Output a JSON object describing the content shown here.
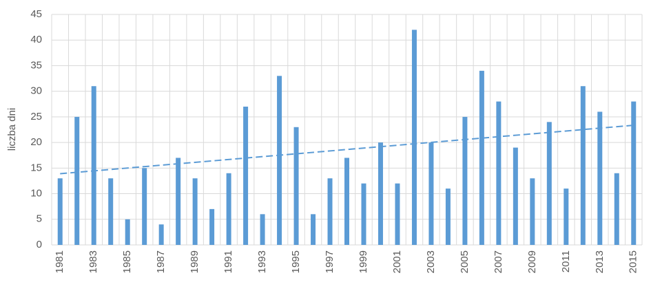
{
  "chart_data": {
    "type": "bar",
    "y_label": "liczba dni",
    "categories": [
      "1981",
      null,
      "1983",
      null,
      "1985",
      null,
      "1987",
      null,
      "1989",
      null,
      "1991",
      null,
      "1993",
      null,
      "1995",
      null,
      "1997",
      null,
      "1999",
      null,
      "2001",
      null,
      "2003",
      null,
      "2005",
      null,
      "2007",
      null,
      "2009",
      null,
      "2011",
      null,
      "2013",
      null,
      "2015"
    ],
    "values": [
      13,
      25,
      31,
      13,
      5,
      15,
      4,
      17,
      13,
      7,
      14,
      27,
      6,
      33,
      23,
      6,
      13,
      17,
      12,
      20,
      12,
      42,
      20,
      11,
      25,
      34,
      28,
      19,
      13,
      24,
      11,
      31,
      26,
      14,
      28
    ],
    "color": "#5b9bd5",
    "ylim": [
      0,
      45
    ],
    "yticks": [
      0,
      5,
      10,
      15,
      20,
      25,
      30,
      35,
      40,
      45
    ],
    "grid": true,
    "trendline": true
  }
}
